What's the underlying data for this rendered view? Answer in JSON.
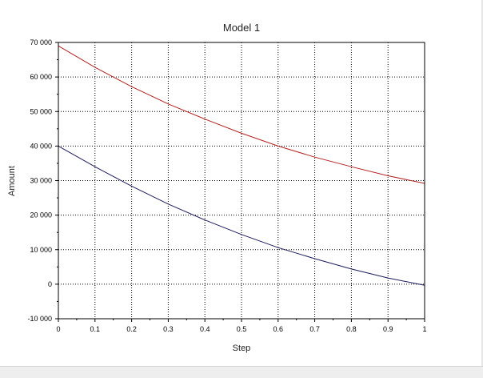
{
  "chart_data": {
    "type": "line",
    "title": "Model 1",
    "xlabel": "Step",
    "ylabel": "Amount",
    "xlim": [
      0,
      1
    ],
    "ylim": [
      -10000,
      70000
    ],
    "x_ticks": [
      "0",
      "0.1",
      "0.2",
      "0.3",
      "0.4",
      "0.5",
      "0.6",
      "0.7",
      "0.8",
      "0.9",
      "1"
    ],
    "y_ticks": [
      "-10 000",
      "0",
      "10 000",
      "20 000",
      "30 000",
      "40 000",
      "50 000",
      "60 000",
      "70 000"
    ],
    "grid": true,
    "series": [
      {
        "color": "#b22222",
        "x": [
          0,
          0.1,
          0.2,
          0.3,
          0.4,
          0.5,
          0.6,
          0.7,
          0.8,
          0.9,
          1
        ],
        "values": [
          69000,
          62800,
          57200,
          52200,
          47800,
          43700,
          40000,
          36800,
          34000,
          31400,
          29200
        ]
      },
      {
        "color": "#1c1c5c",
        "x": [
          0,
          0.1,
          0.2,
          0.3,
          0.4,
          0.5,
          0.6,
          0.7,
          0.8,
          0.9,
          1
        ],
        "values": [
          40000,
          34000,
          28400,
          23200,
          18600,
          14400,
          10600,
          7400,
          4400,
          1800,
          -300
        ]
      }
    ]
  }
}
